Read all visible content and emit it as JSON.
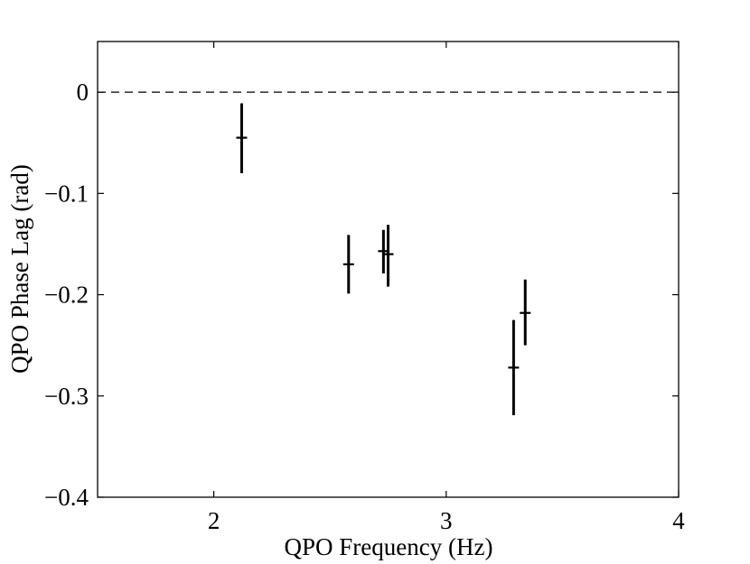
{
  "chart_data": {
    "type": "scatter",
    "title": "",
    "xlabel": "QPO Frequency (Hz)",
    "ylabel": "QPO Phase Lag (rad)",
    "xlim": [
      1.5,
      4
    ],
    "ylim": [
      -0.4,
      0.05
    ],
    "x_ticks": [
      2,
      3,
      4
    ],
    "x_tick_labels": [
      "2",
      "3",
      "4"
    ],
    "y_ticks": [
      0,
      -0.1,
      -0.2,
      -0.3,
      -0.4
    ],
    "y_tick_labels": [
      "0",
      "−0.1",
      "−0.2",
      "−0.3",
      "−0.4"
    ],
    "reference_line": {
      "y": 0,
      "style": "dashed"
    },
    "grid": false,
    "series": [
      {
        "points": [
          {
            "x": 2.12,
            "y": -0.045,
            "yerr_low": 0.035,
            "yerr_high": 0.034
          },
          {
            "x": 2.58,
            "y": -0.17,
            "yerr_low": 0.029,
            "yerr_high": 0.029
          },
          {
            "x": 2.73,
            "y": -0.157,
            "yerr_low": 0.022,
            "yerr_high": 0.021
          },
          {
            "x": 2.75,
            "y": -0.16,
            "yerr_low": 0.032,
            "yerr_high": 0.029
          },
          {
            "x": 3.29,
            "y": -0.272,
            "yerr_low": 0.047,
            "yerr_high": 0.047
          },
          {
            "x": 3.34,
            "y": -0.218,
            "yerr_low": 0.032,
            "yerr_high": 0.033
          }
        ]
      }
    ]
  }
}
